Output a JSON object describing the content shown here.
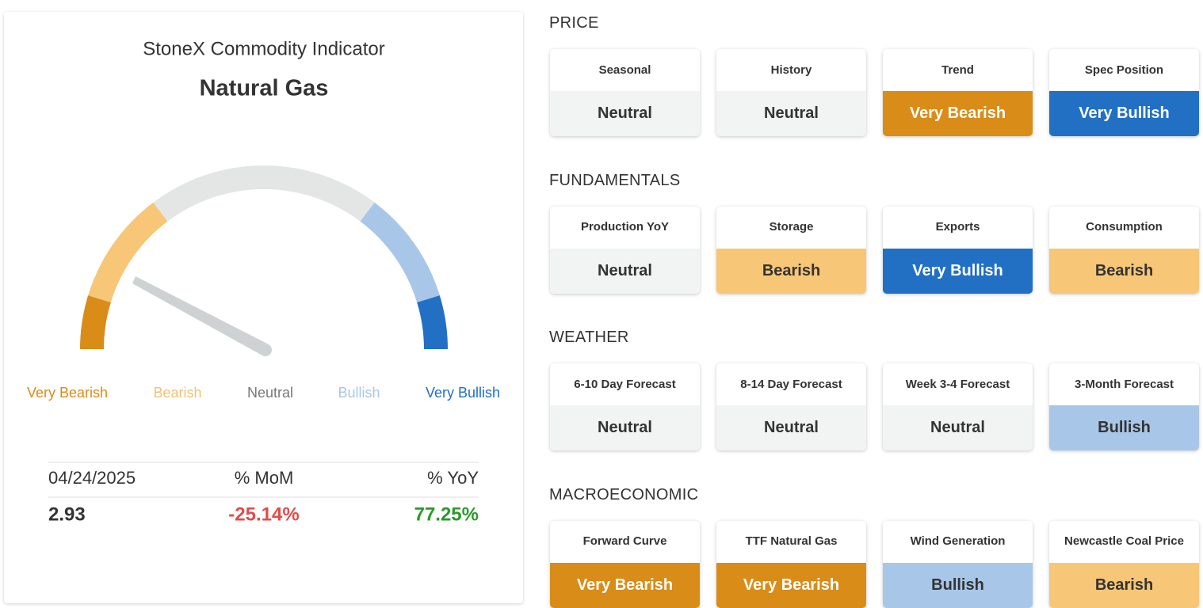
{
  "indicator": {
    "title": "StoneX Commodity Indicator",
    "commodity": "Natural Gas",
    "legend": [
      {
        "label": "Very Bearish",
        "color": "#d98c18"
      },
      {
        "label": "Bearish",
        "color": "#f2c172"
      },
      {
        "label": "Neutral",
        "color": "#777777"
      },
      {
        "label": "Bullish",
        "color": "#a8c6e8"
      },
      {
        "label": "Very Bullish",
        "color": "#2170c4"
      }
    ],
    "stats": {
      "headers": [
        "04/24/2025",
        "% MoM",
        "% YoY"
      ],
      "values": [
        {
          "text": "2.93",
          "color": "#333333"
        },
        {
          "text": "-25.14%",
          "color": "#e24b4b"
        },
        {
          "text": "77.25%",
          "color": "#2a9a2a"
        }
      ]
    }
  },
  "sections": [
    {
      "title": "PRICE",
      "cards": [
        {
          "label": "Seasonal",
          "value": "Neutral",
          "color": "#f2f3f3"
        },
        {
          "label": "History",
          "value": "Neutral",
          "color": "#f2f3f3"
        },
        {
          "label": "Trend",
          "value": "Very Bearish",
          "color": "#d98c18"
        },
        {
          "label": "Spec Position",
          "value": "Very Bullish",
          "color": "#2170c4"
        }
      ]
    },
    {
      "title": "FUNDAMENTALS",
      "cards": [
        {
          "label": "Production YoY",
          "value": "Neutral",
          "color": "#f2f3f3"
        },
        {
          "label": "Storage",
          "value": "Bearish",
          "color": "#f7c676"
        },
        {
          "label": "Exports",
          "value": "Very Bullish",
          "color": "#2170c4"
        },
        {
          "label": "Consumption",
          "value": "Bearish",
          "color": "#f7c676"
        }
      ]
    },
    {
      "title": "WEATHER",
      "cards": [
        {
          "label": "6-10 Day Forecast",
          "value": "Neutral",
          "color": "#f2f3f3"
        },
        {
          "label": "8-14 Day Forecast",
          "value": "Neutral",
          "color": "#f2f3f3"
        },
        {
          "label": "Week 3-4 Forecast",
          "value": "Neutral",
          "color": "#f2f3f3"
        },
        {
          "label": "3-Month Forecast",
          "value": "Bullish",
          "color": "#a8c6e8"
        }
      ]
    },
    {
      "title": "MACROECONOMIC",
      "cards": [
        {
          "label": "Forward Curve",
          "value": "Very Bearish",
          "color": "#d98c18"
        },
        {
          "label": "TTF Natural Gas",
          "value": "Very Bearish",
          "color": "#d98c18"
        },
        {
          "label": "Wind Generation",
          "value": "Bullish",
          "color": "#a8c6e8"
        },
        {
          "label": "Newcastle Coal Price",
          "value": "Bearish",
          "color": "#f7c676"
        }
      ]
    }
  ]
}
